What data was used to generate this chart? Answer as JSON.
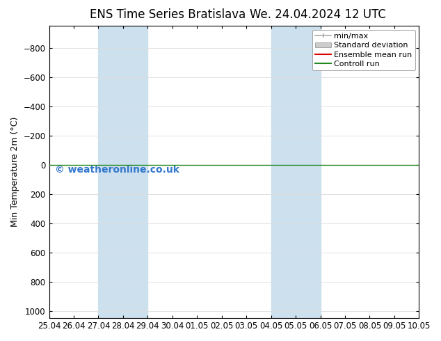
{
  "title_left": "ENS Time Series Bratislava",
  "title_right": "We. 24.04.2024 12 UTC",
  "ylabel": "Min Temperature 2m (°C)",
  "xlabel_dates": [
    "25.04",
    "26.04",
    "27.04",
    "28.04",
    "29.04",
    "30.04",
    "01.05",
    "02.05",
    "03.05",
    "04.05",
    "05.05",
    "06.05",
    "07.05",
    "08.05",
    "09.05",
    "10.05"
  ],
  "yticks": [
    -800,
    -600,
    -400,
    -200,
    0,
    200,
    400,
    600,
    800,
    1000
  ],
  "ylim_bottom": -950,
  "ylim_top": 1050,
  "xlim": [
    0,
    15
  ],
  "horizontal_line_y": 0,
  "horizontal_line_color": "#228822",
  "shaded_bands": [
    {
      "x_start": 2,
      "x_end": 4,
      "color": "#cce0ee"
    },
    {
      "x_start": 9,
      "x_end": 11,
      "color": "#cce0ee"
    }
  ],
  "legend_items": [
    {
      "label": "min/max",
      "color": "#aaaaaa",
      "style": "line_with_caps"
    },
    {
      "label": "Standard deviation",
      "color": "#cccccc",
      "style": "filled_box"
    },
    {
      "label": "Ensemble mean run",
      "color": "#dd0000",
      "style": "line"
    },
    {
      "label": "Controll run",
      "color": "#228822",
      "style": "line"
    }
  ],
  "watermark_text": "© weatheronline.co.uk",
  "watermark_color": "#3377cc",
  "watermark_fontsize": 10,
  "background_color": "#ffffff",
  "plot_bg_color": "#ffffff",
  "grid_color": "#dddddd",
  "tick_label_fontsize": 8.5,
  "title_fontsize": 12,
  "ylabel_fontsize": 9,
  "legend_fontsize": 8
}
